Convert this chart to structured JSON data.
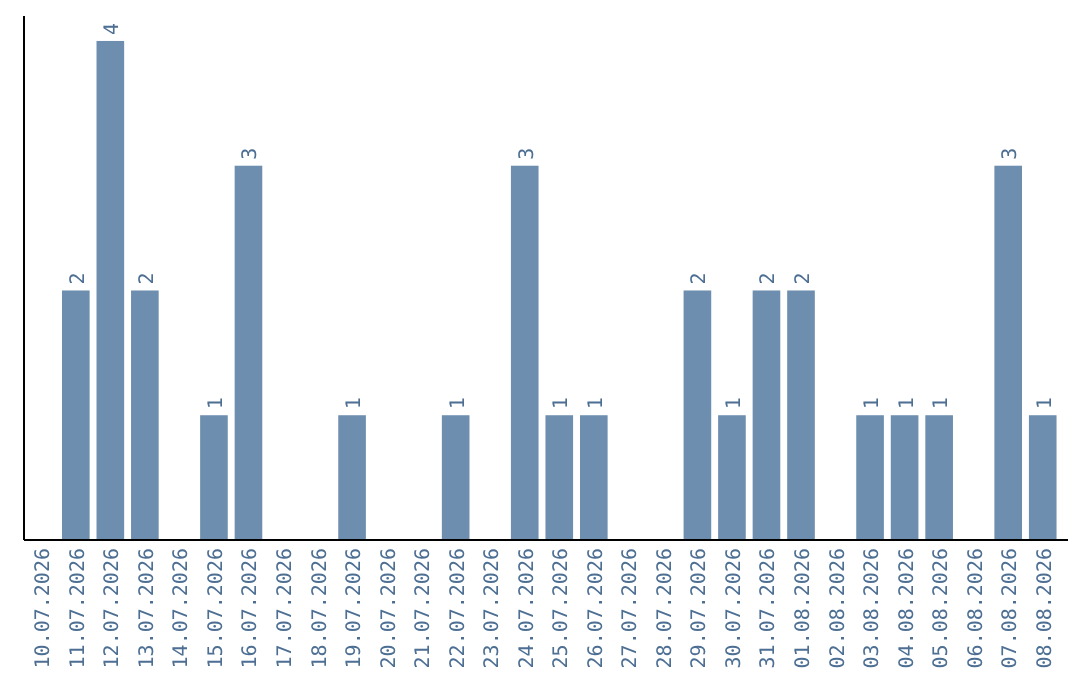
{
  "chart_data": {
    "type": "bar",
    "categories": [
      "10.07.2026",
      "11.07.2026",
      "12.07.2026",
      "13.07.2026",
      "14.07.2026",
      "15.07.2026",
      "16.07.2026",
      "17.07.2026",
      "18.07.2026",
      "19.07.2026",
      "20.07.2026",
      "21.07.2026",
      "22.07.2026",
      "23.07.2026",
      "24.07.2026",
      "25.07.2026",
      "26.07.2026",
      "27.07.2026",
      "28.07.2026",
      "29.07.2026",
      "30.07.2026",
      "31.07.2026",
      "01.08.2026",
      "02.08.2026",
      "03.08.2026",
      "04.08.2026",
      "05.08.2026",
      "06.08.2026",
      "07.08.2026",
      "08.08.2026"
    ],
    "values": [
      0,
      2,
      4,
      2,
      0,
      1,
      3,
      0,
      0,
      1,
      0,
      0,
      1,
      0,
      3,
      1,
      1,
      0,
      0,
      2,
      1,
      2,
      2,
      0,
      1,
      1,
      1,
      0,
      3,
      1
    ],
    "value_labels": [
      null,
      "2",
      "4",
      "2",
      null,
      "1",
      "3",
      null,
      null,
      "1",
      null,
      null,
      "1",
      null,
      "3",
      "1",
      "1",
      null,
      null,
      "2",
      "1",
      "2",
      "2",
      null,
      "1",
      "1",
      "1",
      null,
      "3",
      "1"
    ],
    "color": "#6d8eae",
    "tick_labels": "x"
  }
}
